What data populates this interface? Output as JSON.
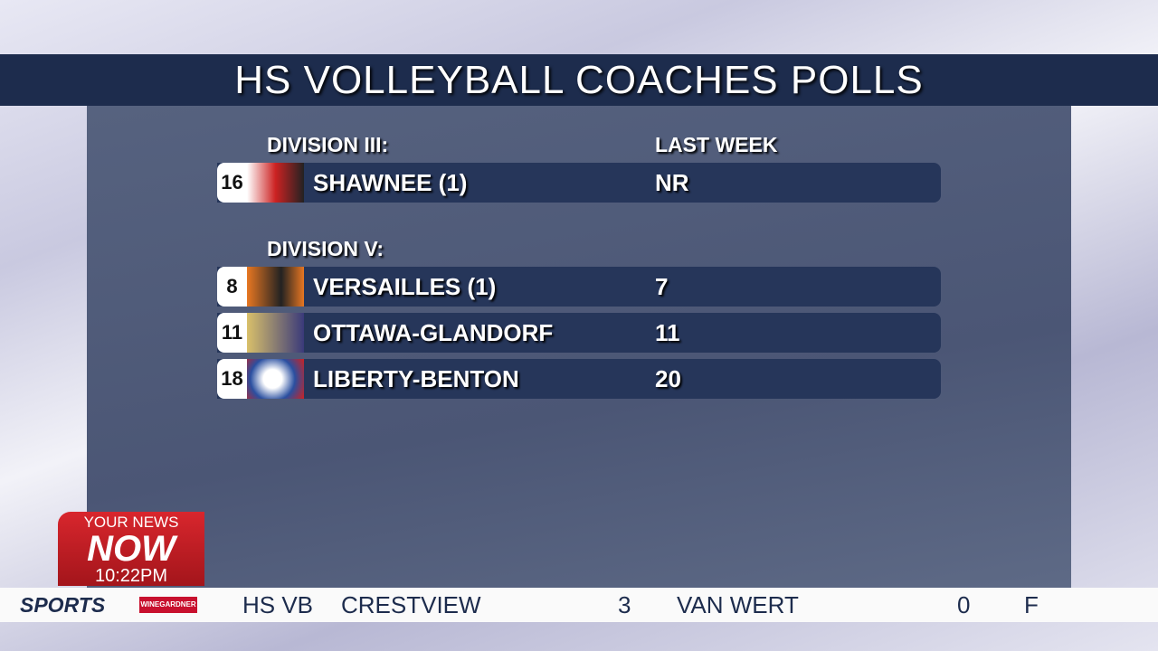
{
  "header": {
    "title": "HS VOLLEYBALL COACHES POLLS"
  },
  "poll": {
    "column_header": "LAST WEEK",
    "divisions": [
      {
        "name": "DIVISION III:",
        "rows": [
          {
            "rank": 16,
            "team": "SHAWNEE (1)",
            "last_week": "NR"
          }
        ]
      },
      {
        "name": "DIVISION V:",
        "rows": [
          {
            "rank": 8,
            "team": "VERSAILLES (1)",
            "last_week": 7
          },
          {
            "rank": 11,
            "team": "OTTAWA-GLANDORF",
            "last_week": 11
          },
          {
            "rank": 18,
            "team": "LIBERTY-BENTON",
            "last_week": 20
          }
        ]
      }
    ]
  },
  "bug": {
    "line1": "YOUR NEWS",
    "line2": "NOW",
    "time": "10:22PM"
  },
  "ticker": {
    "section": "SPORTS",
    "sponsor": "WINEGARDNER",
    "sport": "HS VB",
    "home": "CRESTVIEW",
    "home_score": 3,
    "away": "VAN WERT",
    "away_score": 0,
    "status": "F"
  }
}
